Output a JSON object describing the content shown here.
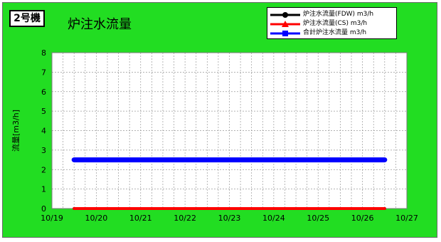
{
  "badge": "2号機",
  "chart_data": {
    "type": "line",
    "title": "炉注水流量",
    "xlabel": "",
    "ylabel": "流量[m3/h]",
    "xlim": [
      19,
      27
    ],
    "ylim": [
      0,
      8
    ],
    "x_tick_values": [
      19,
      20,
      21,
      22,
      23,
      24,
      25,
      26,
      27
    ],
    "x_tick_labels": [
      "10/19",
      "10/20",
      "10/21",
      "10/22",
      "10/23",
      "10/24",
      "10/25",
      "10/26",
      "10/27"
    ],
    "y_ticks": [
      0,
      1,
      2,
      3,
      4,
      5,
      6,
      7,
      8
    ],
    "grid": true,
    "legend_position": "top-right",
    "series": [
      {
        "name": "炉注水流量(FDW) m3/h",
        "color": "#000000",
        "marker": "circle",
        "x": [
          19.5,
          26.5
        ],
        "y": [
          0,
          0
        ]
      },
      {
        "name": "炉注水流量(CS) m3/h",
        "color": "#ff0000",
        "marker": "triangle",
        "x": [
          19.5,
          26.5
        ],
        "y": [
          0,
          0
        ]
      },
      {
        "name": "合計炉注水流量 m3/h",
        "color": "#0000ff",
        "marker": "square",
        "x": [
          19.5,
          26.5
        ],
        "y": [
          2.5,
          2.5
        ]
      }
    ]
  }
}
